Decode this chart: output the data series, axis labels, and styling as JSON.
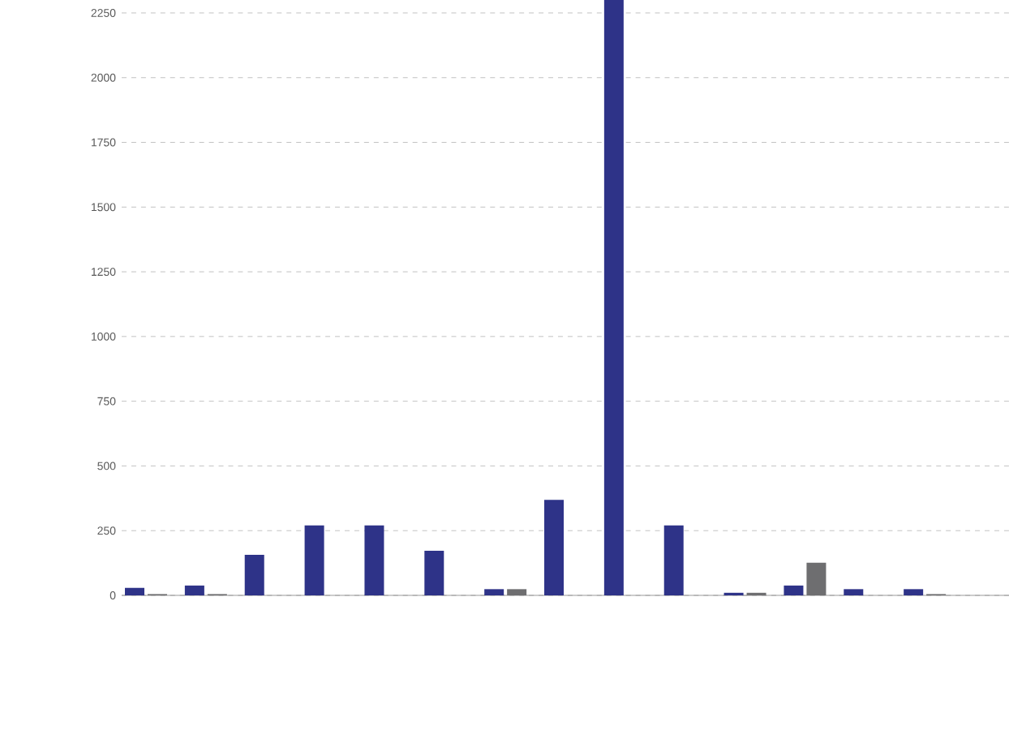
{
  "chart_data": {
    "type": "bar",
    "categories": [
      null,
      null,
      null,
      null,
      null,
      null,
      null,
      null,
      null,
      null,
      null,
      null,
      null,
      null,
      null
    ],
    "series": [
      {
        "color": "#2e3388",
        "values": [
          29,
          38,
          157,
          270,
          270,
          172,
          24,
          369,
          2300,
          270,
          10,
          38,
          24,
          24,
          0
        ]
      },
      {
        "color": "#6e6e70",
        "values": [
          5,
          5,
          null,
          0,
          0,
          0,
          24,
          null,
          0,
          null,
          10,
          126,
          0,
          5,
          0
        ]
      }
    ],
    "ylim": [
      0,
      2300
    ],
    "yticks": [
      0,
      250,
      500,
      750,
      1000,
      1250,
      1500,
      1750,
      2000,
      2250
    ],
    "grid": "y",
    "tick_labels": "y"
  }
}
